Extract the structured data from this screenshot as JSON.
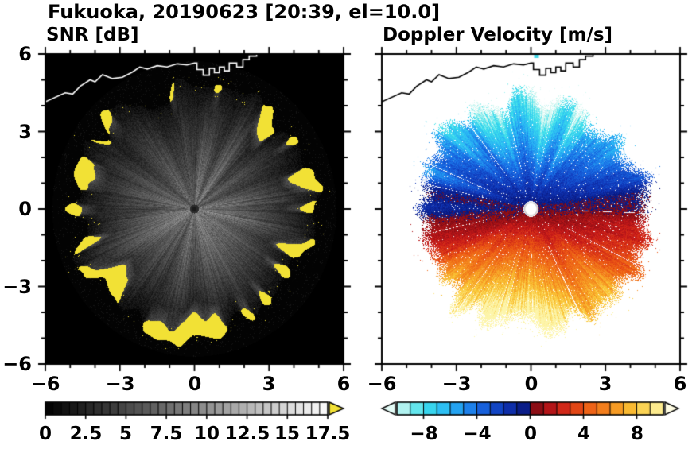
{
  "figure": {
    "title": "Fukuoka, 20190623 [20:39, el=10.0]",
    "station": "Fukuoka",
    "date": "20190623",
    "time": "20:39",
    "elevation": "el=10.0"
  },
  "snr_panel": {
    "title": "SNR [dB]",
    "xtick_labels": [
      "−6",
      "−3",
      "0",
      "3",
      "6"
    ],
    "ytick_labels": [
      "6",
      "3",
      "0",
      "−3",
      "−6"
    ],
    "colorbar_labels": [
      "0",
      "2.5",
      "5",
      "7.5",
      "10",
      "12.5",
      "15",
      "17.5"
    ]
  },
  "velocity_panel": {
    "title": "Doppler Velocity [m/s]",
    "xtick_labels": [
      "−6",
      "−3",
      "0",
      "3",
      "6"
    ],
    "colorbar_labels": [
      "−8",
      "−4",
      "0",
      "4",
      "8"
    ]
  },
  "coastline": {
    "description": "coastline drawn across the top of both PPI panels",
    "points": [
      [
        -6.0,
        4.15
      ],
      [
        -5.2,
        4.5
      ],
      [
        -4.9,
        4.45
      ],
      [
        -4.6,
        4.75
      ],
      [
        -4.2,
        5.0
      ],
      [
        -4.0,
        4.92
      ],
      [
        -3.7,
        5.2
      ],
      [
        -3.3,
        5.05
      ],
      [
        -2.9,
        5.1
      ],
      [
        -2.5,
        5.3
      ],
      [
        -2.2,
        5.5
      ],
      [
        -1.9,
        5.42
      ],
      [
        -1.5,
        5.55
      ],
      [
        -1.1,
        5.5
      ],
      [
        -0.7,
        5.62
      ],
      [
        -0.3,
        5.58
      ],
      [
        0.0,
        5.65
      ],
      [
        0.1,
        5.65
      ],
      [
        0.1,
        5.4
      ],
      [
        0.35,
        5.4
      ],
      [
        0.35,
        5.18
      ],
      [
        0.6,
        5.18
      ],
      [
        0.6,
        5.45
      ],
      [
        0.8,
        5.45
      ],
      [
        0.8,
        5.28
      ],
      [
        1.0,
        5.28
      ],
      [
        1.0,
        5.5
      ],
      [
        1.2,
        5.5
      ],
      [
        1.2,
        5.35
      ],
      [
        1.4,
        5.35
      ],
      [
        1.4,
        5.65
      ],
      [
        1.7,
        5.65
      ],
      [
        1.7,
        5.5
      ],
      [
        1.95,
        5.5
      ],
      [
        1.95,
        5.78
      ],
      [
        2.2,
        5.78
      ],
      [
        2.2,
        5.92
      ],
      [
        2.5,
        5.92
      ],
      [
        2.5,
        6.05
      ]
    ]
  },
  "chart_data": [
    {
      "type": "heatmap",
      "id": "snr",
      "title": "SNR [dB]",
      "plot_style": "radar PPI disk on black background, grayscale echo with radial spokes, over-range clutter shown yellow at echo rim",
      "x_range": [
        -6,
        6
      ],
      "y_range": [
        -6,
        6
      ],
      "xticks": [
        -6,
        -3,
        0,
        3,
        6
      ],
      "yticks": [
        -6,
        -3,
        0,
        3,
        6
      ],
      "minor_tick_step": 1,
      "value_label": "SNR [dB]",
      "value_range": [
        0,
        17.5
      ],
      "colorbar_ticks": [
        0,
        2.5,
        5,
        7.5,
        10,
        12.5,
        15,
        17.5
      ],
      "colormap": "black-to-white grayscale; values above 17.5 dB rendered yellow (arrow end of colorbar)",
      "over_range_color": "#f2e135",
      "background": "#000000",
      "coast_color": "#ffffff",
      "disk_radius": 5.72,
      "echo_mean_radius": 4.7,
      "pattern": "SNR highest (mid gray ~10 dB) near the radar at center, decreasing toward the echo edge at ~4.1-5.3 km; bright/yellow clutter blobs ring the echo boundary"
    },
    {
      "type": "heatmap",
      "id": "doppler_velocity",
      "title": "Doppler Velocity [m/s]",
      "plot_style": "radar PPI velocity field on white background; ragged speckled echo boundary, white dot at radar site",
      "x_range": [
        -6,
        6
      ],
      "y_range": [
        -6,
        6
      ],
      "xticks": [
        -6,
        -3,
        0,
        3,
        6
      ],
      "yticks": [
        -6,
        -3,
        0,
        3,
        6
      ],
      "minor_tick_step": 1,
      "value_label": "Doppler Velocity [m/s]",
      "value_range": [
        -10,
        10
      ],
      "colorbar_ticks": [
        -8,
        -4,
        0,
        4,
        8
      ],
      "colormap_stops": {
        "negative": [
          [
            -10,
            "#d6f8f2"
          ],
          [
            -8,
            "#3ce0eb"
          ],
          [
            -6,
            "#28b4f5"
          ],
          [
            -4,
            "#196ee6"
          ],
          [
            -2,
            "#1037b9"
          ],
          [
            0,
            "#081478"
          ]
        ],
        "positive": [
          [
            0,
            "#780a14"
          ],
          [
            2,
            "#c81919"
          ],
          [
            4,
            "#eb5514"
          ],
          [
            6,
            "#f58c1e"
          ],
          [
            8,
            "#fac837"
          ],
          [
            10,
            "#fdf5aa"
          ]
        ]
      },
      "under_range_color": "#e4fcf7",
      "over_range_color": "#fefce2",
      "background": "#ffffff",
      "coast_color": "#000000",
      "pattern": "negative (blue/cyan, toward radar) velocities fill the northern half, positive (red/orange/yellow, away) the southern half; |v| grows with range from ~0 at center to ~±10 m/s at the echo edge"
    }
  ]
}
